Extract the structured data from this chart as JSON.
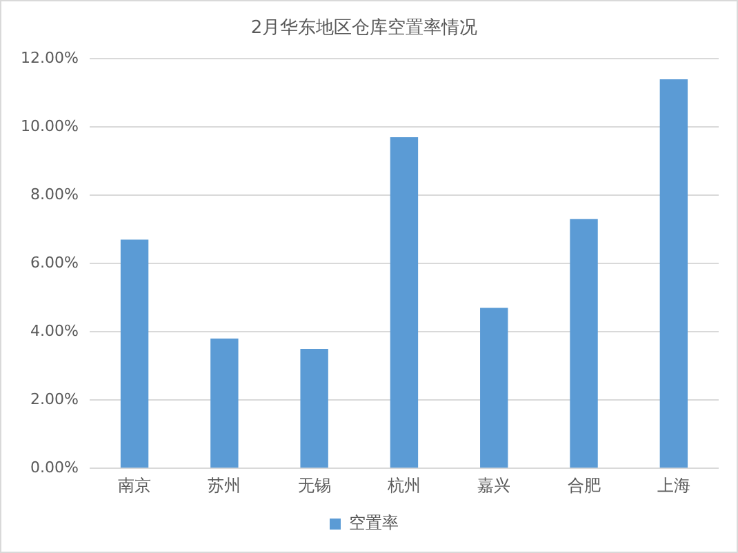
{
  "chart_data": {
    "type": "bar",
    "title": "2月华东地区仓库空置率情况",
    "categories": [
      "南京",
      "苏州",
      "无锡",
      "杭州",
      "嘉兴",
      "合肥",
      "上海"
    ],
    "series": [
      {
        "name": "空置率",
        "color": "#5b9bd5",
        "values": [
          6.7,
          3.8,
          3.5,
          9.7,
          4.7,
          7.3,
          11.4
        ]
      }
    ],
    "ylim": [
      0,
      12
    ],
    "yticks": [
      {
        "value": 0,
        "label": "0.00%"
      },
      {
        "value": 2,
        "label": "2.00%"
      },
      {
        "value": 4,
        "label": "4.00%"
      },
      {
        "value": 6,
        "label": "6.00%"
      },
      {
        "value": 8,
        "label": "8.00%"
      },
      {
        "value": 10,
        "label": "10.00%"
      },
      {
        "value": 12,
        "label": "12.00%"
      }
    ],
    "grid": "y",
    "legend": "bottom"
  }
}
